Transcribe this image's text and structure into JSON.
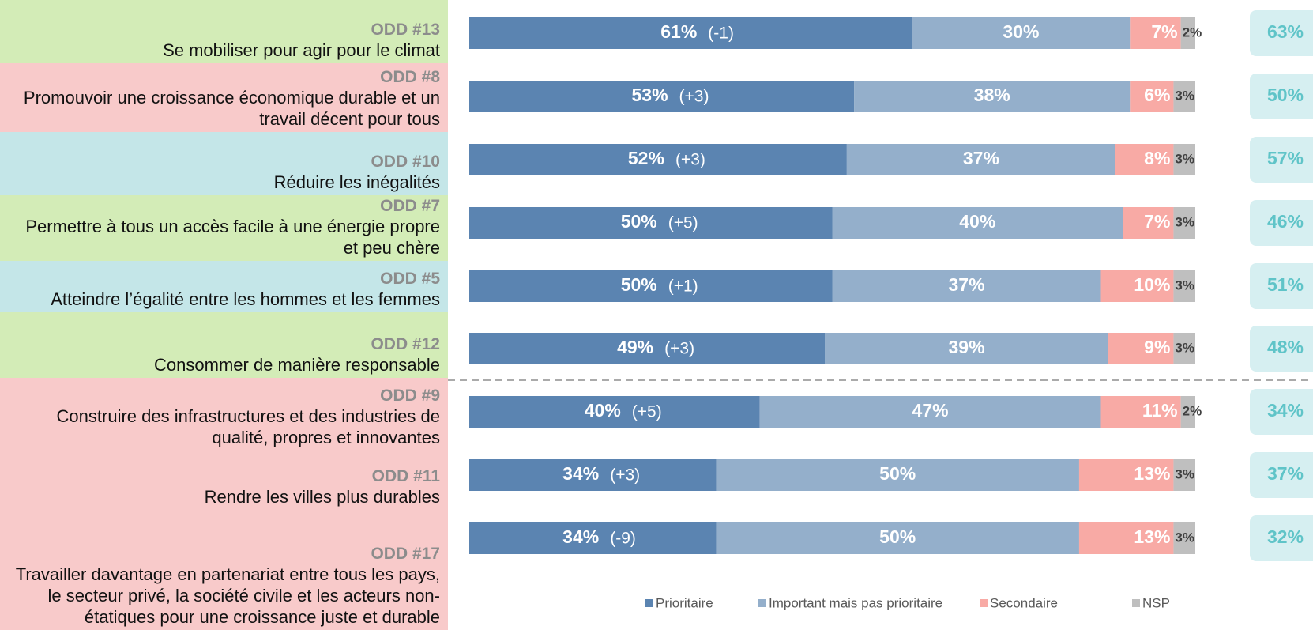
{
  "chart_data": {
    "type": "stacked-bar-horizontal",
    "codes": [
      "ODD #13",
      "ODD #8",
      "ODD #10",
      "ODD #7",
      "ODD #5",
      "ODD #12",
      "ODD #9",
      "ODD #11",
      "ODD #17"
    ],
    "categories": [
      "Se mobiliser pour agir pour le climat",
      "Promouvoir une croissance économique durable et un travail décent pour tous",
      "Réduire les inégalités",
      "Permettre à tous un accès facile à une énergie propre et peu chère",
      "Atteindre l’égalité entre les hommes et les femmes",
      "Consommer de manière responsable",
      "Construire des infrastructures et des industries de qualité, propres et innovantes",
      "Rendre les villes plus durables",
      "Travailler davantage en partenariat entre tous les pays, le secteur privé, la société civile et les acteurs non-étatiques pour une croissance juste et durable"
    ],
    "row_colors": [
      "#d3ecb7",
      "#f8caca",
      "#c4e6e8",
      "#d3ecb7",
      "#c4e6e8",
      "#d3ecb7",
      "#f8caca",
      "#f8caca",
      "#f8caca"
    ],
    "xlim": [
      0,
      100
    ],
    "series": [
      {
        "name": "Prioritaire",
        "color": "#5b84b1",
        "values": [
          61,
          53,
          52,
          50,
          50,
          49,
          40,
          34,
          34
        ],
        "value_labels": [
          "61%",
          "53%",
          "52%",
          "50%",
          "50%",
          "49%",
          "40%",
          "34%",
          "34%"
        ]
      },
      {
        "name": "Important mais pas prioritaire",
        "color": "#94afcb",
        "values": [
          30,
          38,
          37,
          40,
          37,
          39,
          47,
          50,
          50
        ],
        "value_labels": [
          "30%",
          "38%",
          "37%",
          "40%",
          "37%",
          "39%",
          "47%",
          "50%",
          "50%"
        ]
      },
      {
        "name": "Secondaire",
        "color": "#f8aaa5",
        "values": [
          7,
          6,
          8,
          7,
          10,
          9,
          11,
          13,
          13
        ],
        "value_labels": [
          "7%",
          "6%",
          "8%",
          "7%",
          "10%",
          "9%",
          "11%",
          "13%",
          "13%"
        ]
      },
      {
        "name": "NSP",
        "color": "#bfbfbf",
        "values": [
          2,
          3,
          3,
          3,
          3,
          3,
          2,
          3,
          3
        ],
        "value_labels": [
          "2%",
          "3%",
          "3%",
          "3%",
          "3%",
          "3%",
          "2%",
          "3%",
          "3%"
        ]
      }
    ],
    "changes": [
      -1,
      3,
      3,
      5,
      1,
      3,
      5,
      3,
      -9
    ],
    "change_labels": [
      "(-1)",
      "(+3)",
      "(+3)",
      "(+5)",
      "(+1)",
      "(+3)",
      "(+5)",
      "(+3)",
      "(-9)"
    ],
    "side_values": [
      63,
      50,
      57,
      46,
      51,
      48,
      34,
      37,
      32
    ],
    "side_value_labels": [
      "63%",
      "50%",
      "57%",
      "46%",
      "51%",
      "48%",
      "34%",
      "37%",
      "32%"
    ],
    "side_color": "#5fc4c8"
  }
}
